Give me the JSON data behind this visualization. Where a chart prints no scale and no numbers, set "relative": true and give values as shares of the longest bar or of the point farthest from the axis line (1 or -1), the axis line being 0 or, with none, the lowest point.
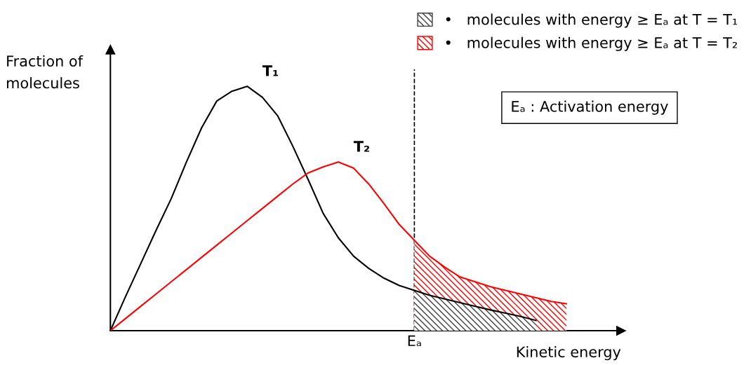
{
  "chart_data": {
    "type": "line",
    "relative": true,
    "categories": [
      null,
      null,
      null,
      null,
      null,
      null,
      null,
      null,
      null,
      null,
      null,
      null,
      null,
      null,
      null,
      null,
      null,
      null,
      null,
      null,
      null,
      null,
      null,
      null,
      null,
      null,
      null,
      null,
      null,
      null,
      null
    ],
    "xlabel": "Kinetic energy",
    "ylabel": "Fraction of\nmolecules",
    "series": [
      {
        "name": "T₁",
        "color": "#000000",
        "values": [
          0,
          0.14,
          0.275,
          0.41,
          0.54,
          0.69,
          0.83,
          0.94,
          0.98,
          1.0,
          0.955,
          0.88,
          0.755,
          0.62,
          0.48,
          0.38,
          0.305,
          0.255,
          0.215,
          0.185,
          0.165,
          0.145,
          0.13,
          0.115,
          0.1,
          0.085,
          0.072,
          0.058,
          0.042,
          null,
          null
        ]
      },
      {
        "name": "T₂",
        "color": "#ff0000",
        "values": [
          0,
          0.05,
          0.1,
          0.15,
          0.2,
          0.25,
          0.3,
          0.35,
          0.4,
          0.45,
          0.5,
          0.55,
          0.6,
          0.645,
          0.67,
          0.69,
          0.665,
          0.6,
          0.52,
          0.435,
          0.37,
          0.305,
          0.26,
          0.22,
          0.2,
          0.18,
          0.165,
          0.15,
          0.135,
          0.12,
          0.11
        ]
      },
      {
        "type": "area",
        "name": "•   molecules with energy ≥ Eₐ at T = T₁",
        "color": "#404040",
        "values": [
          null,
          null,
          null,
          null,
          null,
          null,
          null,
          null,
          null,
          null,
          null,
          null,
          null,
          null,
          null,
          null,
          null,
          null,
          null,
          null,
          0.165,
          0.145,
          0.13,
          0.115,
          0.1,
          0.085,
          0.072,
          0.058,
          0.042,
          null,
          null
        ]
      },
      {
        "type": "area",
        "name": "•   molecules with energy ≥ Eₐ at T = T₂",
        "color": "#ff0000",
        "values": [
          null,
          null,
          null,
          null,
          null,
          null,
          null,
          null,
          null,
          null,
          null,
          null,
          null,
          null,
          null,
          null,
          null,
          null,
          null,
          null,
          0.37,
          0.305,
          0.26,
          0.22,
          0.2,
          0.18,
          0.165,
          0.15,
          0.135,
          0.12,
          0.11
        ]
      }
    ],
    "annotations": [
      {
        "text": "Eₐ"
      },
      "Eₐ : Activation energy"
    ],
    "legend": "top right",
    "grid": false,
    "marker": "none",
    "line_style": "solid"
  }
}
